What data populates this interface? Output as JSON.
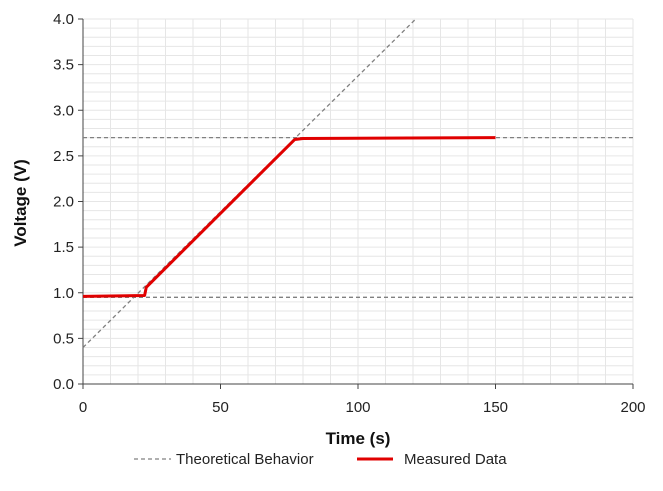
{
  "chart_data": {
    "type": "line",
    "title": "",
    "xlabel": "Time (s)",
    "ylabel": "Voltage (V)",
    "xlim": [
      0,
      200
    ],
    "ylim": [
      0,
      4.0
    ],
    "x_ticks": [
      0,
      50,
      100,
      150,
      200
    ],
    "y_ticks": [
      0.0,
      0.5,
      1.0,
      1.5,
      2.0,
      2.5,
      3.0,
      3.5,
      4.0
    ],
    "x_tick_labels": [
      "0",
      "50",
      "100",
      "150",
      "200"
    ],
    "y_tick_labels": [
      "0.0",
      "0.5",
      "1.0",
      "1.5",
      "2.0",
      "2.5",
      "3.0",
      "3.5",
      "4.0"
    ],
    "grid": true,
    "legend_position": "bottom",
    "series": [
      {
        "name": "Theoretical Behavior",
        "style": "dashed",
        "color": "#808080",
        "segments": [
          {
            "x": [
              0,
              200
            ],
            "y": [
              0.95,
              0.95
            ]
          },
          {
            "x": [
              0,
              200
            ],
            "y": [
              2.7,
              2.7
            ]
          },
          {
            "x": [
              0,
              121
            ],
            "y": [
              0.4,
              4.0
            ]
          }
        ]
      },
      {
        "name": "Measured Data",
        "style": "solid",
        "color": "#e00000",
        "x": [
          0,
          22,
          22.4,
          23,
          77,
          80,
          150
        ],
        "y": [
          0.96,
          0.97,
          0.97,
          1.06,
          2.68,
          2.69,
          2.7
        ]
      }
    ]
  }
}
